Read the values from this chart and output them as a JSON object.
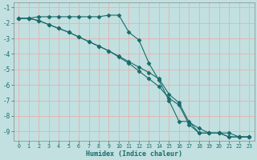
{
  "xlabel": "Humidex (Indice chaleur)",
  "background_color": "#c2e0e0",
  "grid_color": "#e8b0b0",
  "line_color": "#1a6b6b",
  "spine_color": "#888888",
  "xlim": [
    -0.5,
    23.5
  ],
  "ylim": [
    -9.6,
    -0.7
  ],
  "x_ticks": [
    0,
    1,
    2,
    3,
    4,
    5,
    6,
    7,
    8,
    9,
    10,
    11,
    12,
    13,
    14,
    15,
    16,
    17,
    18,
    19,
    20,
    21,
    22,
    23
  ],
  "y_ticks": [
    -1,
    -2,
    -3,
    -4,
    -5,
    -6,
    -7,
    -8,
    -9
  ],
  "line1_x": [
    0,
    1,
    2,
    3,
    4,
    5,
    6,
    7,
    8,
    9,
    10,
    11,
    12,
    13,
    14,
    15,
    16,
    17,
    18,
    19,
    20,
    21,
    22,
    23
  ],
  "line1_y": [
    -1.7,
    -1.7,
    -1.6,
    -1.6,
    -1.6,
    -1.6,
    -1.6,
    -1.6,
    -1.6,
    -1.5,
    -1.5,
    -2.6,
    -3.1,
    -4.6,
    -5.7,
    -7.0,
    -8.35,
    -8.35,
    -9.1,
    -9.1,
    -9.1,
    -9.1,
    -9.35,
    -9.35
  ],
  "line2_x": [
    0,
    1,
    2,
    3,
    4,
    5,
    6,
    7,
    8,
    9,
    10,
    11,
    12,
    13,
    14,
    15,
    16,
    17,
    18,
    19,
    20,
    21,
    22,
    23
  ],
  "line2_y": [
    -1.7,
    -1.7,
    -1.85,
    -2.1,
    -2.35,
    -2.6,
    -2.9,
    -3.2,
    -3.5,
    -3.8,
    -4.15,
    -4.5,
    -4.85,
    -5.2,
    -5.6,
    -6.6,
    -7.15,
    -8.4,
    -8.8,
    -9.1,
    -9.1,
    -9.35,
    -9.35,
    -9.35
  ],
  "line3_x": [
    0,
    1,
    2,
    3,
    4,
    5,
    6,
    7,
    8,
    9,
    10,
    11,
    12,
    13,
    14,
    15,
    16,
    17,
    18,
    19,
    20,
    21,
    22,
    23
  ],
  "line3_y": [
    -1.7,
    -1.7,
    -1.85,
    -2.1,
    -2.35,
    -2.6,
    -2.9,
    -3.2,
    -3.5,
    -3.8,
    -4.2,
    -4.6,
    -5.1,
    -5.6,
    -6.1,
    -6.85,
    -7.3,
    -8.55,
    -9.1,
    -9.1,
    -9.1,
    -9.35,
    -9.35,
    -9.35
  ],
  "marker": "D",
  "marker_size": 2.5,
  "linewidth": 0.8
}
